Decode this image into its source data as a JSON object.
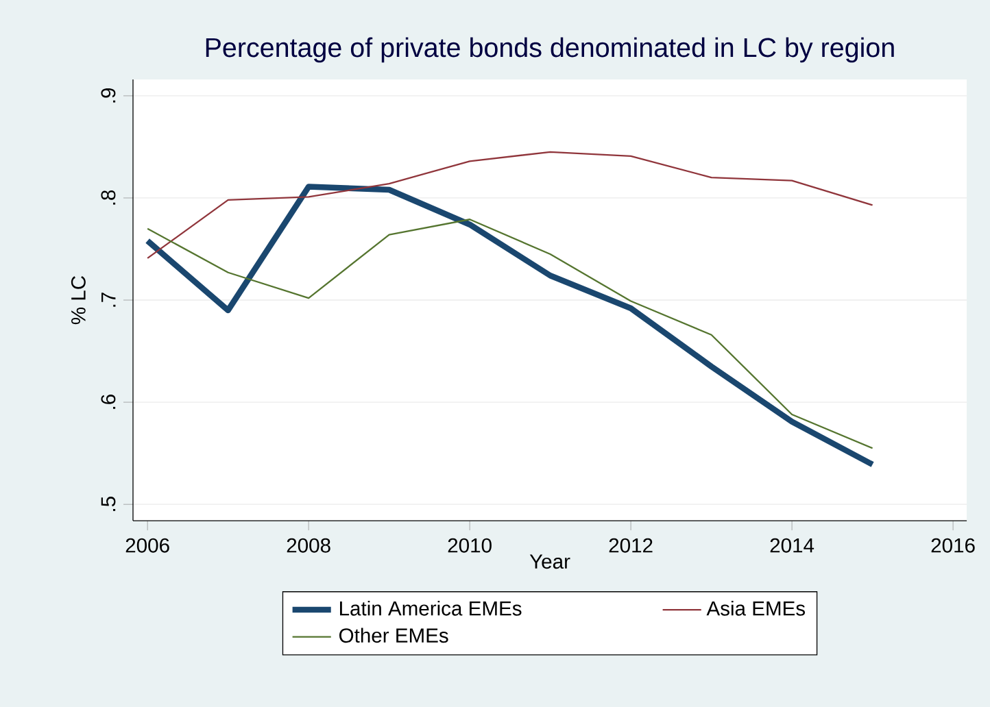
{
  "chart_data": {
    "type": "line",
    "title": "Percentage of private bonds denominated in LC by region",
    "xlabel": "Year",
    "ylabel": "% LC",
    "x": [
      2006,
      2007,
      2008,
      2009,
      2010,
      2011,
      2012,
      2013,
      2014,
      2015
    ],
    "series": [
      {
        "name": "Latin America EMEs",
        "color": "#1a476f",
        "values": [
          0.758,
          0.69,
          0.811,
          0.808,
          0.774,
          0.724,
          0.692,
          0.635,
          0.581,
          0.539
        ]
      },
      {
        "name": "Asia EMEs",
        "color": "#90353b",
        "values": [
          0.741,
          0.798,
          0.801,
          0.814,
          0.836,
          0.845,
          0.841,
          0.82,
          0.817,
          0.793
        ]
      },
      {
        "name": "Other EMEs",
        "color": "#55752f",
        "values": [
          0.77,
          0.727,
          0.702,
          0.764,
          0.779,
          0.745,
          0.699,
          0.666,
          0.588,
          0.555
        ]
      }
    ],
    "xlim": [
      2005.82,
      2016.17
    ],
    "ylim": [
      0.484,
      0.916
    ],
    "xticks": [
      2006,
      2008,
      2010,
      2012,
      2014,
      2016
    ],
    "yticks": [
      {
        "value": 0.5,
        "label": ".5"
      },
      {
        "value": 0.6,
        "label": ".6"
      },
      {
        "value": 0.7,
        "label": ".7"
      },
      {
        "value": 0.8,
        "label": ".8"
      },
      {
        "value": 0.9,
        "label": ".9"
      }
    ],
    "grid": "y",
    "legend": "bottom",
    "line_style": "solid",
    "marker": "none"
  }
}
